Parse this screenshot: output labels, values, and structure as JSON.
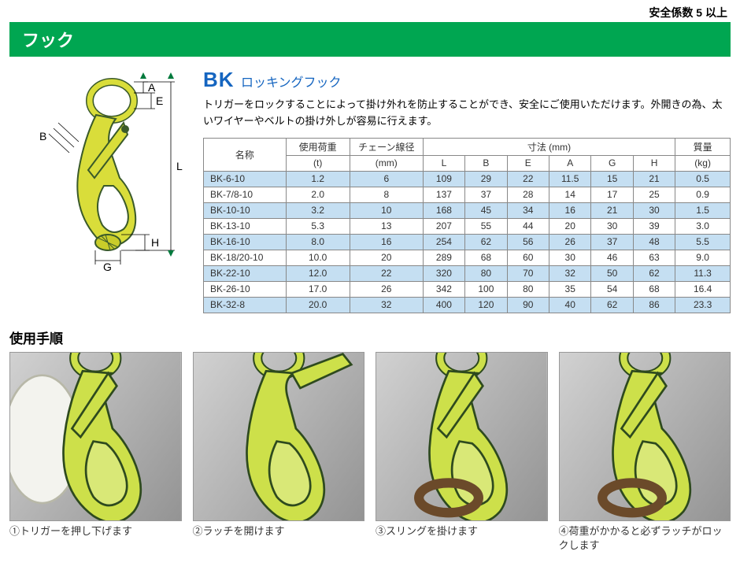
{
  "top_note": "安全係数 5 以上",
  "banner": "フック",
  "title_big": "BK",
  "title_sub": "ロッキングフック",
  "description": "トリガーをロックすることによって掛け外れを防止することができ、安全にご使用いただけます。外開きの為、太いワイヤーやベルトの掛け外しが容易に行えます。",
  "dim_labels": {
    "A": "A",
    "E": "E",
    "B": "B",
    "L": "L",
    "H": "H",
    "G": "G"
  },
  "colors": {
    "banner": "#00a651",
    "title": "#1565c0",
    "row_alt": "#c5dff2",
    "hook_fill": "#d9dd3a",
    "hook_stroke": "#3a5a2a",
    "arrow": "#007a3d"
  },
  "table": {
    "header": {
      "name": "名称",
      "load": "使用荷重",
      "load_unit": "(t)",
      "chain": "チェーン線径",
      "chain_unit": "(mm)",
      "dims": "寸法 (mm)",
      "mass": "質量",
      "mass_unit": "(kg)",
      "L": "L",
      "B": "B",
      "E": "E",
      "A": "A",
      "G": "G",
      "H": "H"
    },
    "rows": [
      {
        "name": "BK-6-10",
        "load": "1.2",
        "chain": "6",
        "L": "109",
        "B": "29",
        "E": "22",
        "A": "11.5",
        "G": "15",
        "H": "21",
        "mass": "0.5"
      },
      {
        "name": "BK-7/8-10",
        "load": "2.0",
        "chain": "8",
        "L": "137",
        "B": "37",
        "E": "28",
        "A": "14",
        "G": "17",
        "H": "25",
        "mass": "0.9"
      },
      {
        "name": "BK-10-10",
        "load": "3.2",
        "chain": "10",
        "L": "168",
        "B": "45",
        "E": "34",
        "A": "16",
        "G": "21",
        "H": "30",
        "mass": "1.5"
      },
      {
        "name": "BK-13-10",
        "load": "5.3",
        "chain": "13",
        "L": "207",
        "B": "55",
        "E": "44",
        "A": "20",
        "G": "30",
        "H": "39",
        "mass": "3.0"
      },
      {
        "name": "BK-16-10",
        "load": "8.0",
        "chain": "16",
        "L": "254",
        "B": "62",
        "E": "56",
        "A": "26",
        "G": "37",
        "H": "48",
        "mass": "5.5"
      },
      {
        "name": "BK-18/20-10",
        "load": "10.0",
        "chain": "20",
        "L": "289",
        "B": "68",
        "E": "60",
        "A": "30",
        "G": "46",
        "H": "63",
        "mass": "9.0"
      },
      {
        "name": "BK-22-10",
        "load": "12.0",
        "chain": "22",
        "L": "320",
        "B": "80",
        "E": "70",
        "A": "32",
        "G": "50",
        "H": "62",
        "mass": "11.3"
      },
      {
        "name": "BK-26-10",
        "load": "17.0",
        "chain": "26",
        "L": "342",
        "B": "100",
        "E": "80",
        "A": "35",
        "G": "54",
        "H": "68",
        "mass": "16.4"
      },
      {
        "name": "BK-32-8",
        "load": "20.0",
        "chain": "32",
        "L": "400",
        "B": "120",
        "E": "90",
        "A": "40",
        "G": "62",
        "H": "86",
        "mass": "23.3"
      }
    ]
  },
  "procedure": {
    "title": "使用手順",
    "steps": [
      {
        "caption": "①トリガーを押し下げます"
      },
      {
        "caption": "②ラッチを開けます"
      },
      {
        "caption": "③スリングを掛けます"
      },
      {
        "caption": "④荷重がかかると必ずラッチがロックします"
      }
    ]
  }
}
